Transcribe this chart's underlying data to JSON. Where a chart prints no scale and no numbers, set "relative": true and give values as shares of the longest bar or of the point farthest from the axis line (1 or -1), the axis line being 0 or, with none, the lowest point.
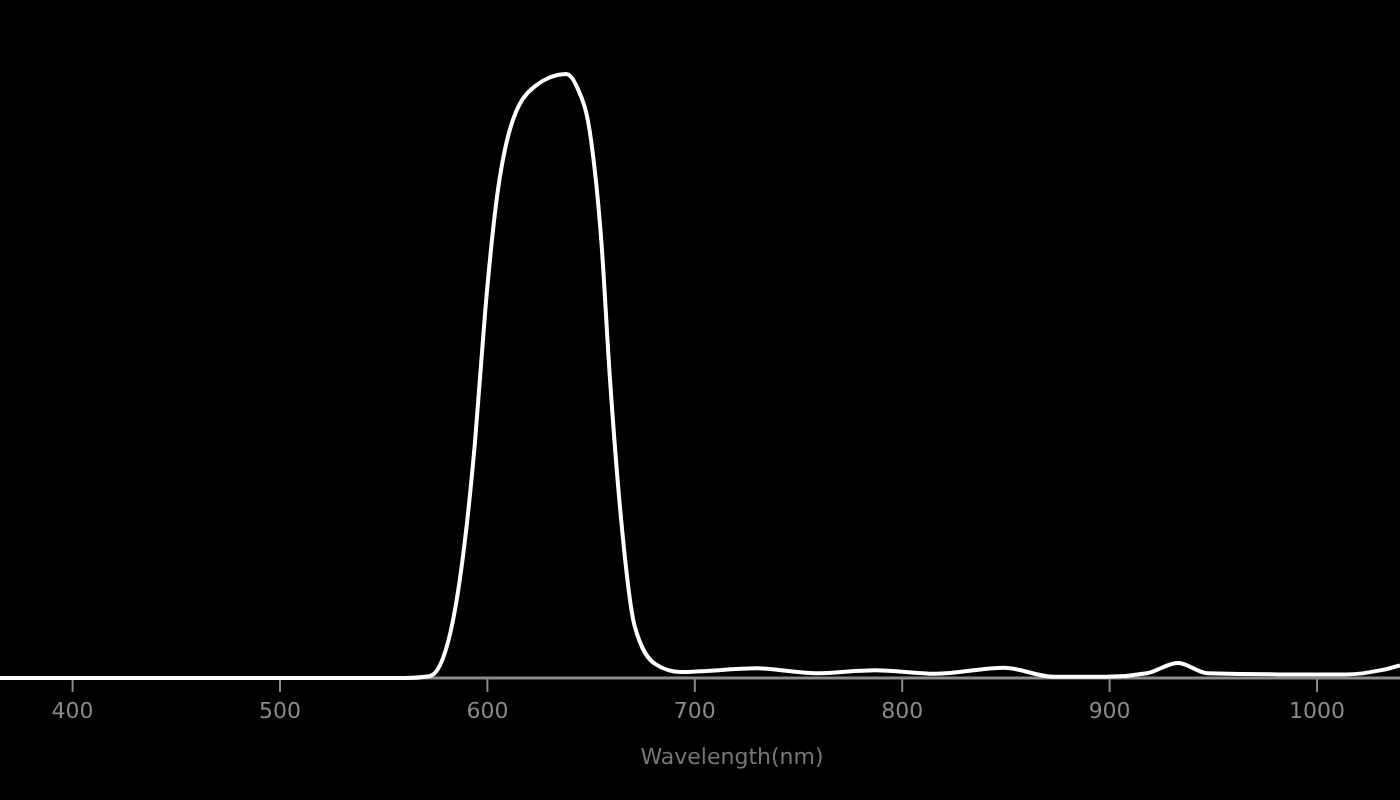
{
  "chart_data": {
    "type": "line",
    "relative": true,
    "xlabel": "Wavelength(nm)",
    "xlim": [
      365,
      1040
    ],
    "xticks": [
      400,
      500,
      600,
      700,
      800,
      900,
      1000
    ],
    "grid": false,
    "marker": "none",
    "line_style": "solid",
    "series": [
      {
        "color": "#ffffff",
        "x": [
          365,
          560,
          572,
          577,
          587,
          594,
          599,
          604,
          611,
          623,
          638,
          643,
          650,
          655,
          659,
          664,
          671,
          681,
          693,
          730,
          758,
          787,
          816,
          849,
          873,
          898,
          918,
          933,
          947,
          982,
          1014,
          1031,
          1040
        ],
        "values": [
          0,
          0,
          0.003,
          0.02,
          0.17,
          0.39,
          0.61,
          0.78,
          0.91,
          0.98,
          1,
          0.98,
          0.89,
          0.72,
          0.5,
          0.28,
          0.086,
          0.023,
          0.01,
          0.016,
          0.008,
          0.013,
          0.007,
          0.017,
          0.002,
          0.002,
          0.008,
          0.025,
          0.008,
          0.006,
          0.006,
          0.013,
          0.021
        ]
      }
    ]
  }
}
